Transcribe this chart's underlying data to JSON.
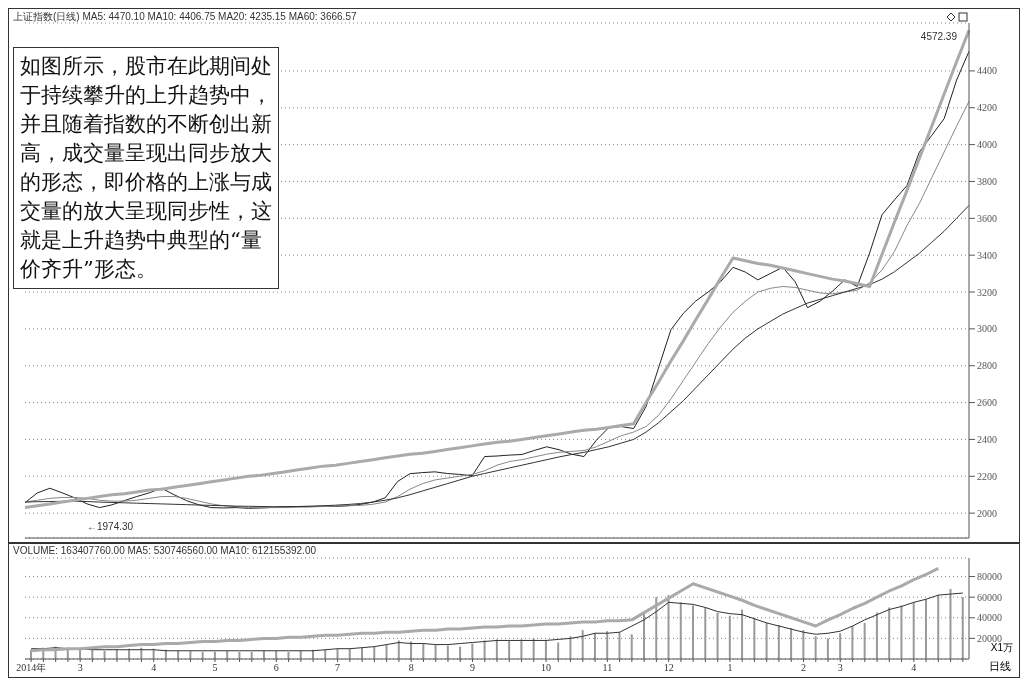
{
  "chart_data": [
    {
      "type": "line",
      "title": "上证指数(日线) MA5: 4470.10 MA10: 4406.75 MA20: 4235.15 MA60: 3666.57",
      "categories": [
        null,
        null,
        null,
        null,
        null,
        null,
        null,
        null,
        null,
        null,
        null,
        null,
        null,
        null,
        null,
        null,
        null,
        null,
        null,
        null,
        null,
        null,
        null,
        null,
        null,
        null,
        null,
        null,
        null,
        null,
        null,
        null,
        null,
        null,
        null,
        null,
        null,
        null,
        null,
        null,
        null,
        null,
        null,
        null,
        null,
        null,
        null,
        null,
        null,
        null,
        null,
        null,
        null,
        null,
        null,
        null,
        null,
        null,
        null,
        null,
        null,
        null,
        null,
        null,
        null,
        null,
        null,
        null,
        null,
        null,
        null,
        null,
        null,
        null,
        null,
        null,
        null
      ],
      "tick_labels": "y",
      "ylim": [
        1865,
        4660
      ],
      "yticks": [
        2000,
        2200,
        2400,
        2600,
        2800,
        3000,
        3200,
        3400,
        3600,
        3800,
        4000,
        4200,
        4400
      ],
      "grid": "y",
      "marker": "none",
      "line_style": "solid",
      "series": [
        {
          "color": "#222222",
          "values": [
            2057,
            2110,
            2135,
            2110,
            2083,
            2050,
            2030,
            2045,
            2068,
            2090,
            2110,
            2135,
            2100,
            2068,
            2045,
            2030,
            2028,
            2030,
            2026,
            2028,
            2031,
            2035,
            2036,
            2035,
            2038,
            2036,
            2040,
            2047,
            2060,
            2083,
            2172,
            2214,
            2220,
            2224,
            2215,
            2210,
            2203,
            2307,
            2310,
            2315,
            2318,
            2340,
            2360,
            2344,
            2320,
            2307,
            2396,
            2464,
            2470,
            2459,
            2578,
            2787,
            2995,
            3084,
            3151,
            3200,
            3256,
            3334,
            3308,
            3266,
            3300,
            3334,
            3256,
            3115,
            3150,
            3204,
            3266,
            3230,
            3412,
            3620,
            3700,
            3777,
            3959,
            4050,
            4141,
            4350,
            4506
          ]
        },
        {
          "color": "#888888",
          "values": [
            2060,
            2070,
            2080,
            2085,
            2085,
            2080,
            2070,
            2065,
            2065,
            2070,
            2080,
            2090,
            2090,
            2080,
            2065,
            2050,
            2040,
            2035,
            2030,
            2030,
            2030,
            2030,
            2032,
            2034,
            2036,
            2038,
            2040,
            2042,
            2048,
            2060,
            2090,
            2130,
            2160,
            2180,
            2190,
            2200,
            2210,
            2230,
            2260,
            2280,
            2290,
            2305,
            2320,
            2330,
            2335,
            2340,
            2360,
            2390,
            2420,
            2440,
            2470,
            2530,
            2620,
            2720,
            2820,
            2920,
            3010,
            3090,
            3150,
            3200,
            3220,
            3230,
            3225,
            3210,
            3195,
            3190,
            3200,
            3210,
            3250,
            3320,
            3420,
            3560,
            3680,
            3820,
            3960,
            4100,
            4235
          ]
        },
        {
          "color": "#333333",
          "values": [
            2060,
            2062,
            2063,
            2064,
            2064,
            2063,
            2060,
            2058,
            2056,
            2054,
            2052,
            2050,
            2048,
            2046,
            2044,
            2042,
            2040,
            2038,
            2037,
            2036,
            2035,
            2035,
            2036,
            2038,
            2040,
            2043,
            2047,
            2052,
            2060,
            2070,
            2083,
            2100,
            2120,
            2140,
            2160,
            2180,
            2200,
            2215,
            2230,
            2245,
            2260,
            2275,
            2290,
            2305,
            2318,
            2330,
            2345,
            2360,
            2380,
            2400,
            2440,
            2490,
            2550,
            2610,
            2680,
            2750,
            2820,
            2890,
            2950,
            3000,
            3040,
            3080,
            3110,
            3140,
            3160,
            3180,
            3200,
            3220,
            3240,
            3270,
            3310,
            3360,
            3410,
            3470,
            3530,
            3600,
            3670
          ]
        },
        {
          "color": "#aaaaaa",
          "values": [
            2030,
            2040,
            2050,
            2060,
            2070,
            2080,
            2090,
            2100,
            2105,
            2115,
            2125,
            2130,
            2140,
            2150,
            2160,
            2170,
            2180,
            2190,
            2200,
            2205,
            2215,
            2225,
            2235,
            2245,
            2255,
            2260,
            2270,
            2280,
            2290,
            2300,
            2310,
            2320,
            2325,
            2335,
            2345,
            2355,
            2365,
            2375,
            2385,
            2390,
            2400,
            2410,
            2420,
            2430,
            2440,
            2450,
            2455,
            2465,
            2475,
            2485,
            2600,
            2710,
            2825,
            2935,
            3050,
            3160,
            3275,
            3385,
            3370,
            3355,
            3345,
            3330,
            3315,
            3300,
            3285,
            3270,
            3260,
            3245,
            3230,
            3405,
            3580,
            3750,
            3925,
            4100,
            4275,
            4450,
            4620
          ]
        }
      ],
      "annotations": [
        "如图所示，股市在此期间处于持续攀升的上升趋势中，并且随着指数的不断创出新高，成交量呈现出同步放大的形态，即价格的上涨与成交量的放大呈现同步性，这就是上升趋势中典型的“量价齐升”形态。",
        "4572.39",
        "←1974.30"
      ]
    },
    {
      "type": "bar",
      "title": "VOLUME: 163407760.00 MA5: 530746560.00 MA10: 612155392.00",
      "ylabel": "X1万",
      "categories": [
        "2014年",
        null,
        null,
        null,
        "3",
        null,
        null,
        null,
        null,
        null,
        "4",
        null,
        null,
        null,
        null,
        "5",
        null,
        null,
        null,
        null,
        "6",
        null,
        null,
        null,
        null,
        "7",
        null,
        null,
        null,
        null,
        null,
        "8",
        null,
        null,
        null,
        null,
        "9",
        null,
        null,
        null,
        null,
        null,
        "10",
        null,
        null,
        null,
        null,
        "11",
        null,
        null,
        null,
        null,
        "12",
        null,
        null,
        null,
        null,
        "1",
        null,
        null,
        null,
        null,
        null,
        "2",
        null,
        null,
        "3",
        null,
        null,
        null,
        null,
        null,
        "4",
        null,
        null,
        null,
        null
      ],
      "ylim": [
        0,
        98000
      ],
      "yticks": [
        20000,
        40000,
        60000,
        80000
      ],
      "grid": "y",
      "marker": "none",
      "line_style": "solid",
      "series": [
        {
          "color": "#999999",
          "values": [
            9000,
            11000,
            12000,
            11000,
            10000,
            9000,
            8000,
            9000,
            10000,
            11000,
            10000,
            9000,
            8000,
            8000,
            7000,
            7000,
            8000,
            7000,
            7000,
            8000,
            8000,
            7000,
            8000,
            9000,
            9000,
            10000,
            10000,
            11000,
            12000,
            14000,
            18000,
            17000,
            15000,
            14000,
            13000,
            12000,
            15000,
            18000,
            19000,
            18000,
            19000,
            20000,
            18000,
            16000,
            22000,
            28000,
            25000,
            27000,
            26000,
            24000,
            45000,
            60000,
            62000,
            55000,
            52000,
            50000,
            45000,
            42000,
            48000,
            40000,
            35000,
            33000,
            30000,
            28000,
            22000,
            20000,
            25000,
            32000,
            35000,
            45000,
            50000,
            52000,
            55000,
            58000,
            62000,
            68000,
            60000
          ]
        },
        {
          "type": "line",
          "color": "#333333",
          "values": [
            10000,
            10000,
            11000,
            10000,
            10000,
            9000,
            9000,
            9000,
            9000,
            9000,
            9000,
            8000,
            8000,
            8000,
            8000,
            8000,
            8000,
            8000,
            8000,
            8000,
            8000,
            8000,
            8000,
            8000,
            9000,
            10000,
            10000,
            11000,
            12000,
            14000,
            16000,
            15000,
            15000,
            14000,
            14000,
            15000,
            16000,
            17000,
            18000,
            18000,
            18000,
            18000,
            18000,
            19000,
            20000,
            22000,
            25000,
            25000,
            26000,
            32000,
            38000,
            46000,
            55000,
            54000,
            53000,
            50000,
            46000,
            44000,
            43000,
            39000,
            35000,
            32000,
            29000,
            26000,
            24000,
            25000,
            27000,
            32000,
            38000,
            43000,
            48000,
            51000,
            55000,
            58000,
            62000,
            63000,
            64000
          ]
        },
        {
          "type": "line",
          "color": "#aaaaaa",
          "values": [
            8000,
            9000,
            9000,
            10000,
            10000,
            11000,
            12000,
            12000,
            13000,
            14000,
            14000,
            15000,
            15000,
            16000,
            17000,
            17000,
            18000,
            18000,
            19000,
            20000,
            20000,
            21000,
            21000,
            22000,
            23000,
            23000,
            24000,
            25000,
            25000,
            26000,
            26000,
            27000,
            28000,
            28000,
            29000,
            29000,
            30000,
            31000,
            31000,
            32000,
            32000,
            33000,
            34000,
            34000,
            35000,
            36000,
            36000,
            37000,
            37000,
            38000,
            45000,
            52000,
            59000,
            66000,
            73000,
            69000,
            65000,
            61000,
            57000,
            52000,
            48000,
            44000,
            40000,
            36000,
            32000,
            38000,
            43000,
            49000,
            54000,
            60000,
            66000,
            71000,
            77000,
            82000,
            88000,
            null,
            null
          ]
        }
      ],
      "annotations": [
        "日线"
      ]
    }
  ]
}
